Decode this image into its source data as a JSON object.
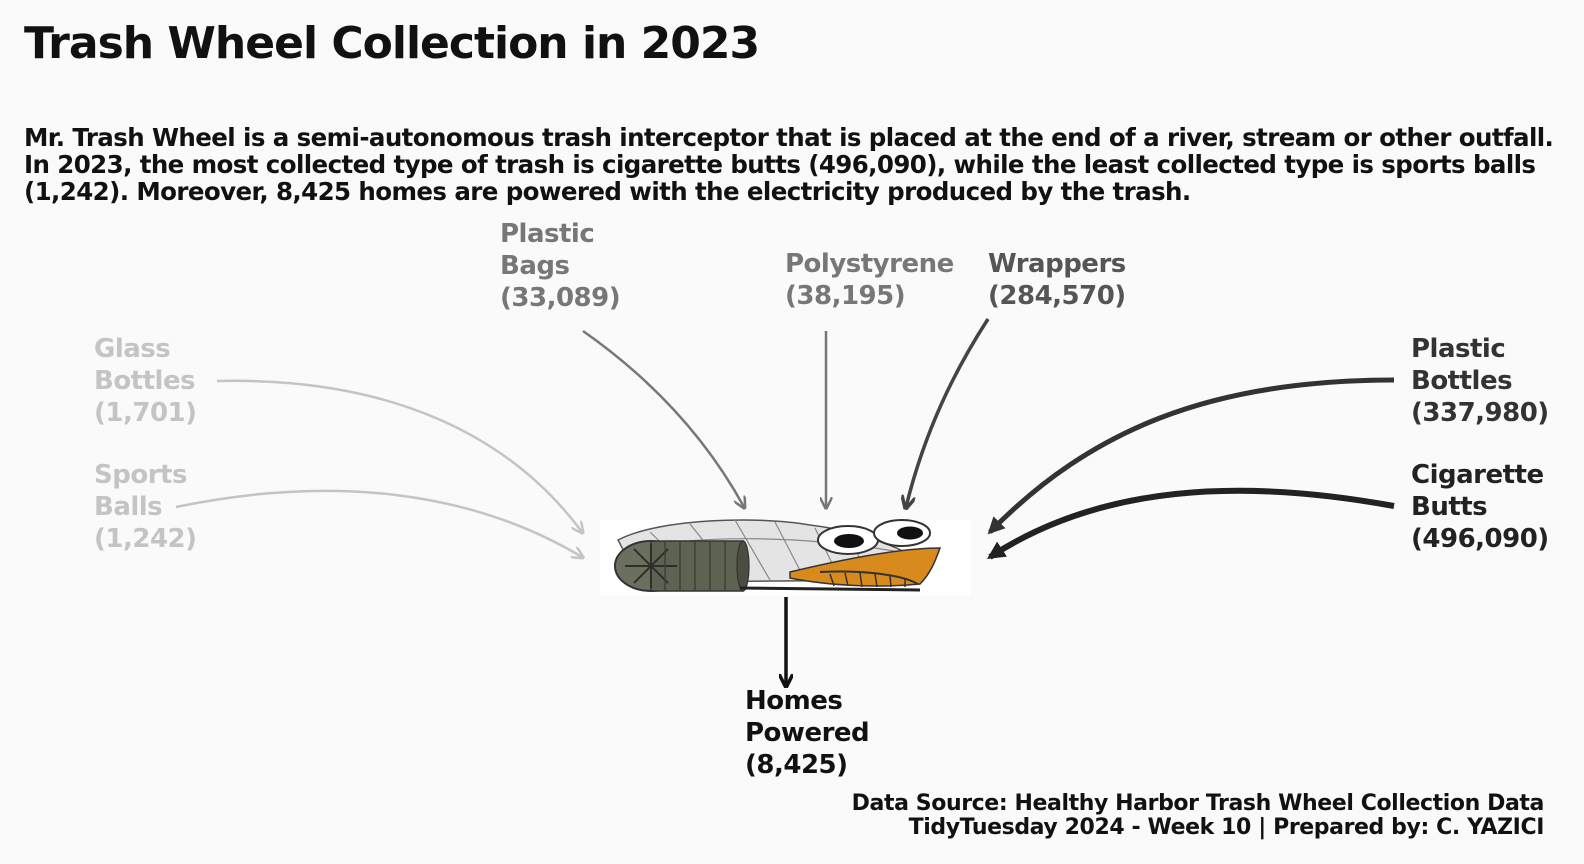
{
  "title": "Trash Wheel Collection in 2023",
  "subtitle": "Mr. Trash Wheel is a semi-autonomous trash interceptor that is placed at the end of a river, stream or other outfall. In 2023, the most collected type of trash is cigarette butts (496,090), while the least collected type is sports balls (1,242). Moreover, 8,425 homes are powered with the electricity produced by the trash.",
  "colors": {
    "background": "#fafafa",
    "text": "#111111",
    "glass_bottles": "#c4c4c4",
    "sports_balls": "#c4c4c4",
    "plastic_bags": "#777777",
    "polystyrene": "#777777",
    "wrappers": "#444444",
    "plastic_bottles": "#333333",
    "cigarette_butts": "#222222",
    "homes_powered": "#111111"
  },
  "items": {
    "glass_bottles": {
      "line1": "Glass",
      "line2": "Bottles",
      "value": "(1,701)"
    },
    "sports_balls": {
      "line1": "Sports",
      "line2": "Balls",
      "value": "(1,242)"
    },
    "plastic_bags": {
      "line1": "Plastic",
      "line2": "Bags",
      "value": "(33,089)"
    },
    "polystyrene": {
      "line1": "Polystyrene",
      "value": "(38,195)"
    },
    "wrappers": {
      "line1": "Wrappers",
      "value": "(284,570)"
    },
    "plastic_bottles": {
      "line1": "Plastic",
      "line2": "Bottles",
      "value": "(337,980)"
    },
    "cigarette_butts": {
      "line1": "Cigarette",
      "line2": "Butts",
      "value": "(496,090)"
    },
    "homes_powered": {
      "line1": "Homes",
      "line2": "Powered",
      "value": "(8,425)"
    }
  },
  "footer": {
    "line1": "Data Source: Healthy Harbor Trash Wheel Collection Data",
    "line2": "TidyTuesday 2024 - Week 10 | Prepared by: C. YAZICI"
  }
}
